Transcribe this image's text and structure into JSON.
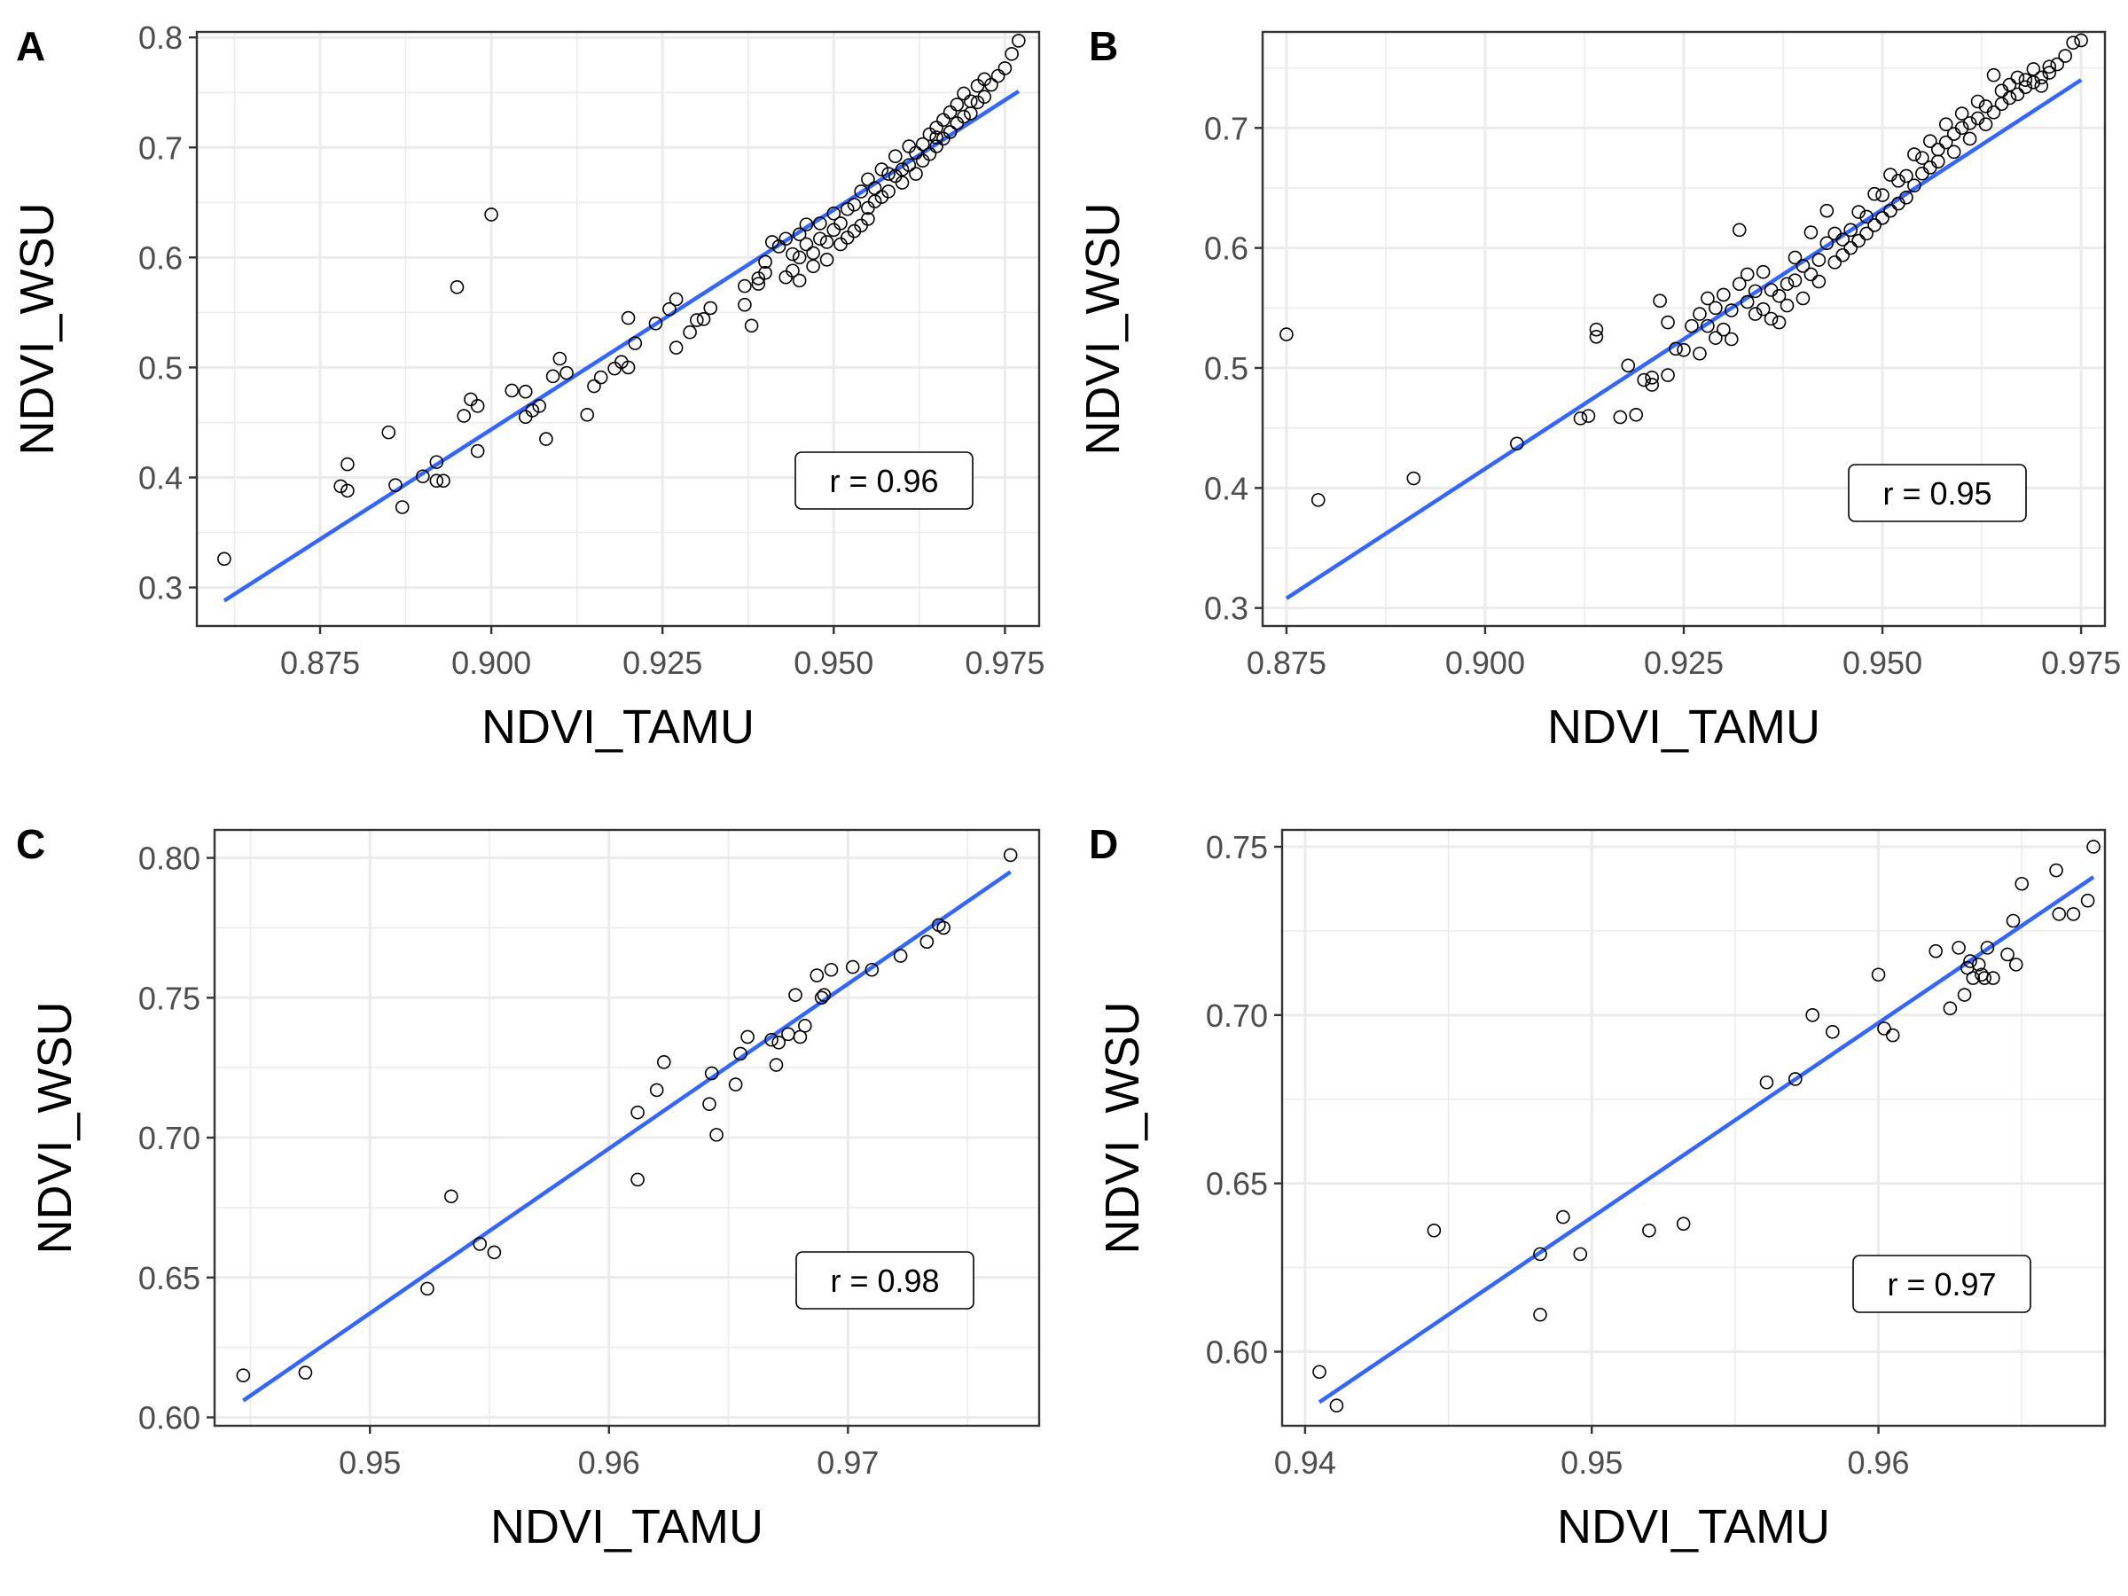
{
  "figure": {
    "panels": [
      {
        "tag": "A",
        "xlabel": "NDVI_TAMU",
        "ylabel": "NDVI_WSU",
        "r_label": "r = 0.96",
        "xticks": [
          "0.875",
          "0.900",
          "0.925",
          "0.950",
          "0.975"
        ],
        "yticks": [
          "0.3",
          "0.4",
          "0.5",
          "0.6",
          "0.7",
          "0.8"
        ]
      },
      {
        "tag": "B",
        "xlabel": "NDVI_TAMU",
        "ylabel": "NDVI_WSU",
        "r_label": "r = 0.95",
        "xticks": [
          "0.875",
          "0.900",
          "0.925",
          "0.950",
          "0.975"
        ],
        "yticks": [
          "0.3",
          "0.4",
          "0.5",
          "0.6",
          "0.7"
        ]
      },
      {
        "tag": "C",
        "xlabel": "NDVI_TAMU",
        "ylabel": "NDVI_WSU",
        "r_label": "r = 0.98",
        "xticks": [
          "0.95",
          "0.96",
          "0.97"
        ],
        "yticks": [
          "0.60",
          "0.65",
          "0.70",
          "0.75",
          "0.80"
        ]
      },
      {
        "tag": "D",
        "xlabel": "NDVI_TAMU",
        "ylabel": "NDVI_WSU",
        "r_label": "r = 0.97",
        "xticks": [
          "0.94",
          "0.95",
          "0.96"
        ],
        "yticks": [
          "0.60",
          "0.65",
          "0.70",
          "0.75"
        ]
      }
    ]
  },
  "colors": {
    "fit_line": "#3366ff",
    "points": "#000000",
    "grid": "#ebebeb",
    "panel_border": "#333333"
  },
  "chart_data": [
    {
      "type": "scatter",
      "panel": "A",
      "xlabel": "NDVI_TAMU",
      "ylabel": "NDVI_WSU",
      "xlim": [
        0.857,
        0.98
      ],
      "ylim": [
        0.265,
        0.805
      ],
      "xticks": [
        0.875,
        0.9,
        0.925,
        0.95,
        0.975
      ],
      "yticks": [
        0.3,
        0.4,
        0.5,
        0.6,
        0.7,
        0.8
      ],
      "grid": true,
      "annotation": "r = 0.96",
      "fit_line": {
        "x": [
          0.861,
          0.977
        ],
        "y": [
          0.288,
          0.751
        ]
      },
      "points": {
        "x": [
          0.861,
          0.878,
          0.879,
          0.879,
          0.885,
          0.886,
          0.887,
          0.89,
          0.892,
          0.892,
          0.893,
          0.895,
          0.896,
          0.897,
          0.898,
          0.898,
          0.9,
          0.903,
          0.905,
          0.905,
          0.906,
          0.907,
          0.908,
          0.909,
          0.91,
          0.911,
          0.914,
          0.915,
          0.916,
          0.918,
          0.919,
          0.92,
          0.92,
          0.921,
          0.924,
          0.926,
          0.927,
          0.927,
          0.929,
          0.93,
          0.931,
          0.932,
          0.937,
          0.937,
          0.938,
          0.939,
          0.939,
          0.94,
          0.94,
          0.941,
          0.942,
          0.943,
          0.943,
          0.944,
          0.944,
          0.945,
          0.945,
          0.945,
          0.946,
          0.946,
          0.947,
          0.947,
          0.948,
          0.948,
          0.949,
          0.949,
          0.95,
          0.95,
          0.951,
          0.951,
          0.952,
          0.952,
          0.953,
          0.953,
          0.954,
          0.954,
          0.955,
          0.955,
          0.955,
          0.956,
          0.956,
          0.957,
          0.957,
          0.958,
          0.958,
          0.959,
          0.959,
          0.96,
          0.96,
          0.961,
          0.961,
          0.962,
          0.962,
          0.963,
          0.963,
          0.964,
          0.964,
          0.965,
          0.965,
          0.965,
          0.966,
          0.966,
          0.967,
          0.967,
          0.968,
          0.968,
          0.969,
          0.969,
          0.97,
          0.97,
          0.971,
          0.971,
          0.972,
          0.972,
          0.973,
          0.974,
          0.975,
          0.976,
          0.977
        ],
        "y": [
          0.326,
          0.392,
          0.412,
          0.388,
          0.441,
          0.393,
          0.373,
          0.401,
          0.414,
          0.397,
          0.397,
          0.573,
          0.456,
          0.471,
          0.424,
          0.465,
          0.639,
          0.479,
          0.455,
          0.478,
          0.461,
          0.465,
          0.435,
          0.492,
          0.508,
          0.495,
          0.457,
          0.483,
          0.491,
          0.499,
          0.505,
          0.5,
          0.545,
          0.522,
          0.54,
          0.553,
          0.562,
          0.518,
          0.532,
          0.543,
          0.544,
          0.554,
          0.574,
          0.557,
          0.538,
          0.581,
          0.576,
          0.596,
          0.586,
          0.614,
          0.61,
          0.582,
          0.617,
          0.603,
          0.588,
          0.621,
          0.6,
          0.579,
          0.63,
          0.612,
          0.604,
          0.592,
          0.631,
          0.617,
          0.598,
          0.614,
          0.64,
          0.625,
          0.631,
          0.612,
          0.644,
          0.618,
          0.624,
          0.648,
          0.629,
          0.66,
          0.645,
          0.671,
          0.635,
          0.651,
          0.663,
          0.68,
          0.655,
          0.676,
          0.66,
          0.674,
          0.692,
          0.668,
          0.68,
          0.701,
          0.684,
          0.676,
          0.695,
          0.688,
          0.703,
          0.712,
          0.694,
          0.718,
          0.701,
          0.709,
          0.725,
          0.708,
          0.732,
          0.714,
          0.739,
          0.722,
          0.728,
          0.749,
          0.742,
          0.731,
          0.756,
          0.741,
          0.746,
          0.762,
          0.757,
          0.765,
          0.772,
          0.785,
          0.797
        ]
      }
    },
    {
      "type": "scatter",
      "panel": "B",
      "xlabel": "NDVI_TAMU",
      "ylabel": "NDVI_WSU",
      "xlim": [
        0.872,
        0.978
      ],
      "ylim": [
        0.285,
        0.78
      ],
      "xticks": [
        0.875,
        0.9,
        0.925,
        0.95,
        0.975
      ],
      "yticks": [
        0.3,
        0.4,
        0.5,
        0.6,
        0.7
      ],
      "grid": true,
      "annotation": "r = 0.95",
      "fit_line": {
        "x": [
          0.875,
          0.975
        ],
        "y": [
          0.308,
          0.74
        ]
      },
      "points": {
        "x": [
          0.875,
          0.879,
          0.891,
          0.904,
          0.912,
          0.913,
          0.914,
          0.914,
          0.917,
          0.918,
          0.919,
          0.92,
          0.921,
          0.921,
          0.922,
          0.923,
          0.923,
          0.924,
          0.925,
          0.926,
          0.927,
          0.927,
          0.928,
          0.928,
          0.929,
          0.929,
          0.93,
          0.93,
          0.931,
          0.931,
          0.932,
          0.932,
          0.933,
          0.933,
          0.934,
          0.934,
          0.935,
          0.935,
          0.936,
          0.936,
          0.937,
          0.937,
          0.938,
          0.938,
          0.939,
          0.939,
          0.94,
          0.94,
          0.941,
          0.941,
          0.942,
          0.942,
          0.943,
          0.943,
          0.944,
          0.944,
          0.945,
          0.945,
          0.946,
          0.946,
          0.947,
          0.947,
          0.948,
          0.948,
          0.949,
          0.949,
          0.95,
          0.95,
          0.951,
          0.951,
          0.952,
          0.952,
          0.953,
          0.953,
          0.954,
          0.954,
          0.955,
          0.955,
          0.956,
          0.956,
          0.957,
          0.957,
          0.958,
          0.958,
          0.959,
          0.959,
          0.96,
          0.96,
          0.961,
          0.961,
          0.962,
          0.962,
          0.963,
          0.963,
          0.964,
          0.964,
          0.965,
          0.965,
          0.966,
          0.966,
          0.967,
          0.967,
          0.968,
          0.968,
          0.969,
          0.969,
          0.97,
          0.97,
          0.971,
          0.971,
          0.972,
          0.973,
          0.974,
          0.975
        ],
        "y": [
          0.528,
          0.39,
          0.408,
          0.437,
          0.458,
          0.46,
          0.532,
          0.526,
          0.459,
          0.502,
          0.461,
          0.49,
          0.486,
          0.492,
          0.556,
          0.494,
          0.538,
          0.516,
          0.515,
          0.535,
          0.545,
          0.512,
          0.535,
          0.558,
          0.525,
          0.55,
          0.561,
          0.532,
          0.548,
          0.524,
          0.615,
          0.57,
          0.578,
          0.555,
          0.545,
          0.564,
          0.549,
          0.58,
          0.541,
          0.565,
          0.56,
          0.538,
          0.57,
          0.552,
          0.592,
          0.573,
          0.585,
          0.558,
          0.613,
          0.578,
          0.59,
          0.572,
          0.604,
          0.631,
          0.588,
          0.612,
          0.607,
          0.594,
          0.615,
          0.6,
          0.606,
          0.63,
          0.626,
          0.612,
          0.645,
          0.619,
          0.644,
          0.625,
          0.661,
          0.631,
          0.637,
          0.656,
          0.66,
          0.642,
          0.678,
          0.652,
          0.662,
          0.675,
          0.667,
          0.689,
          0.682,
          0.672,
          0.703,
          0.688,
          0.695,
          0.68,
          0.7,
          0.712,
          0.704,
          0.691,
          0.708,
          0.722,
          0.718,
          0.703,
          0.744,
          0.713,
          0.72,
          0.731,
          0.736,
          0.725,
          0.728,
          0.742,
          0.734,
          0.74,
          0.749,
          0.738,
          0.742,
          0.735,
          0.746,
          0.751,
          0.753,
          0.76,
          0.771,
          0.773
        ]
      }
    },
    {
      "type": "scatter",
      "panel": "C",
      "xlabel": "NDVI_TAMU",
      "ylabel": "NDVI_WSU",
      "xlim": [
        0.9435,
        0.978
      ],
      "ylim": [
        0.597,
        0.81
      ],
      "xticks": [
        0.95,
        0.96,
        0.97
      ],
      "yticks": [
        0.6,
        0.65,
        0.7,
        0.75,
        0.8
      ],
      "grid": true,
      "annotation": "r = 0.98",
      "fit_line": {
        "x": [
          0.9447,
          0.9768
        ],
        "y": [
          0.606,
          0.795
        ]
      },
      "points": {
        "x": [
          0.9447,
          0.9473,
          0.9524,
          0.9534,
          0.9546,
          0.9552,
          0.9612,
          0.9612,
          0.962,
          0.9623,
          0.9642,
          0.9643,
          0.9645,
          0.9653,
          0.9655,
          0.9658,
          0.9668,
          0.967,
          0.9671,
          0.9675,
          0.9678,
          0.968,
          0.9682,
          0.9687,
          0.9689,
          0.969,
          0.9693,
          0.9702,
          0.971,
          0.9722,
          0.9733,
          0.9738,
          0.974,
          0.9768
        ],
        "y": [
          0.615,
          0.616,
          0.646,
          0.679,
          0.662,
          0.659,
          0.685,
          0.709,
          0.717,
          0.727,
          0.712,
          0.723,
          0.701,
          0.719,
          0.73,
          0.736,
          0.735,
          0.726,
          0.734,
          0.737,
          0.751,
          0.736,
          0.74,
          0.758,
          0.75,
          0.751,
          0.76,
          0.761,
          0.76,
          0.765,
          0.77,
          0.776,
          0.775,
          0.801
        ]
      }
    },
    {
      "type": "scatter",
      "panel": "D",
      "xlabel": "NDVI_TAMU",
      "ylabel": "NDVI_WSU",
      "xlim": [
        0.9392,
        0.9679
      ],
      "ylim": [
        0.578,
        0.755
      ],
      "xticks": [
        0.94,
        0.95,
        0.96
      ],
      "yticks": [
        0.6,
        0.65,
        0.7,
        0.75
      ],
      "grid": true,
      "annotation": "r = 0.97",
      "fit_line": {
        "x": [
          0.9405,
          0.9675
        ],
        "y": [
          0.585,
          0.741
        ]
      },
      "points": {
        "x": [
          0.9405,
          0.9411,
          0.9445,
          0.9482,
          0.9482,
          0.949,
          0.9496,
          0.952,
          0.9532,
          0.9561,
          0.9571,
          0.9577,
          0.9584,
          0.96,
          0.9602,
          0.9605,
          0.962,
          0.9625,
          0.9628,
          0.963,
          0.9631,
          0.9632,
          0.9633,
          0.9635,
          0.9636,
          0.9637,
          0.9638,
          0.964,
          0.9645,
          0.9647,
          0.9648,
          0.965,
          0.9662,
          0.9663,
          0.9668,
          0.9673,
          0.9675
        ],
        "y": [
          0.594,
          0.584,
          0.636,
          0.629,
          0.611,
          0.64,
          0.629,
          0.636,
          0.638,
          0.68,
          0.681,
          0.7,
          0.695,
          0.712,
          0.696,
          0.694,
          0.719,
          0.702,
          0.72,
          0.706,
          0.714,
          0.716,
          0.711,
          0.715,
          0.712,
          0.711,
          0.72,
          0.711,
          0.718,
          0.728,
          0.715,
          0.739,
          0.743,
          0.73,
          0.73,
          0.734,
          0.75
        ]
      }
    }
  ]
}
